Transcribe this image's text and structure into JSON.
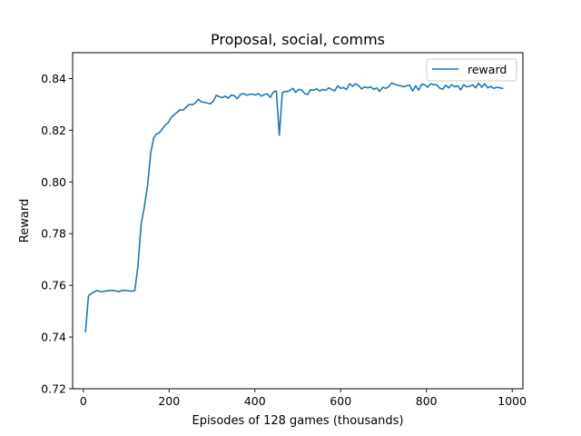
{
  "chart_data": {
    "type": "line",
    "title": "Proposal, social, comms",
    "xlabel": "Episodes of 128 games (thousands)",
    "ylabel": "Reward",
    "xlim": [
      -25,
      1025
    ],
    "ylim": [
      0.72,
      0.85
    ],
    "xticks": [
      0,
      200,
      400,
      600,
      800,
      1000
    ],
    "yticks": [
      0.72,
      0.74,
      0.76,
      0.78,
      0.8,
      0.82,
      0.84
    ],
    "xtick_labels": [
      "0",
      "200",
      "400",
      "600",
      "800",
      "1000"
    ],
    "ytick_labels": [
      "0.72",
      "0.74",
      "0.76",
      "0.78",
      "0.80",
      "0.82",
      "0.84"
    ],
    "grid": false,
    "legend_position": "top-right",
    "colors": {
      "reward": "#1f77b4"
    },
    "series": [
      {
        "name": "reward",
        "x": [
          5,
          12,
          22,
          32,
          42,
          52,
          62,
          72,
          82,
          92,
          102,
          112,
          120,
          127,
          135,
          142,
          150,
          157,
          164,
          170,
          177,
          184,
          191,
          198,
          205,
          212,
          219,
          226,
          233,
          240,
          247,
          254,
          261,
          268,
          275,
          282,
          289,
          296,
          303,
          310,
          317,
          324,
          331,
          338,
          345,
          352,
          359,
          366,
          373,
          380,
          387,
          394,
          401,
          408,
          415,
          422,
          429,
          436,
          443,
          450,
          457,
          464,
          471,
          478,
          484,
          489,
          495,
          502,
          509,
          516,
          523,
          530,
          537,
          544,
          551,
          558,
          565,
          572,
          579,
          586,
          593,
          600,
          607,
          614,
          621,
          628,
          635,
          642,
          649,
          656,
          663,
          670,
          677,
          684,
          691,
          698,
          705,
          712,
          719,
          726,
          733,
          740,
          747,
          754,
          761,
          768,
          775,
          782,
          789,
          796,
          803,
          810,
          817,
          824,
          831,
          838,
          845,
          852,
          859,
          866,
          873,
          880,
          887,
          894,
          901,
          908,
          915,
          922,
          929,
          936,
          943,
          950,
          957,
          964,
          971,
          978
        ],
        "y": [
          0.742,
          0.756,
          0.7572,
          0.758,
          0.7575,
          0.7578,
          0.758,
          0.758,
          0.7576,
          0.7581,
          0.758,
          0.7577,
          0.758,
          0.767,
          0.784,
          0.79,
          0.799,
          0.811,
          0.817,
          0.8185,
          0.819,
          0.8205,
          0.822,
          0.823,
          0.825,
          0.826,
          0.827,
          0.828,
          0.8278,
          0.829,
          0.83,
          0.8298,
          0.8305,
          0.832,
          0.831,
          0.8308,
          0.8305,
          0.8302,
          0.8312,
          0.8335,
          0.833,
          0.8326,
          0.8332,
          0.8324,
          0.8336,
          0.8334,
          0.8322,
          0.8338,
          0.8342,
          0.8336,
          0.8338,
          0.834,
          0.8336,
          0.8342,
          0.8332,
          0.8338,
          0.834,
          0.8327,
          0.8348,
          0.8352,
          0.818,
          0.8346,
          0.835,
          0.835,
          0.8357,
          0.8362,
          0.8346,
          0.8358,
          0.8356,
          0.8342,
          0.8338,
          0.8357,
          0.8355,
          0.836,
          0.8352,
          0.8358,
          0.8354,
          0.8364,
          0.8358,
          0.8352,
          0.8372,
          0.8362,
          0.8365,
          0.8358,
          0.838,
          0.837,
          0.838,
          0.8372,
          0.836,
          0.8368,
          0.8364,
          0.8368,
          0.8358,
          0.8364,
          0.835,
          0.8366,
          0.8362,
          0.8368,
          0.8383,
          0.8378,
          0.8374,
          0.8372,
          0.8368,
          0.8372,
          0.8374,
          0.8352,
          0.8372,
          0.8355,
          0.8378,
          0.8376,
          0.8366,
          0.838,
          0.8376,
          0.8376,
          0.8363,
          0.8358,
          0.8374,
          0.8364,
          0.8376,
          0.8368,
          0.8372,
          0.8356,
          0.8376,
          0.8368,
          0.837,
          0.8376,
          0.8364,
          0.8382,
          0.8366,
          0.838,
          0.8364,
          0.837,
          0.8362,
          0.8366,
          0.8364,
          0.8362
        ]
      }
    ]
  }
}
